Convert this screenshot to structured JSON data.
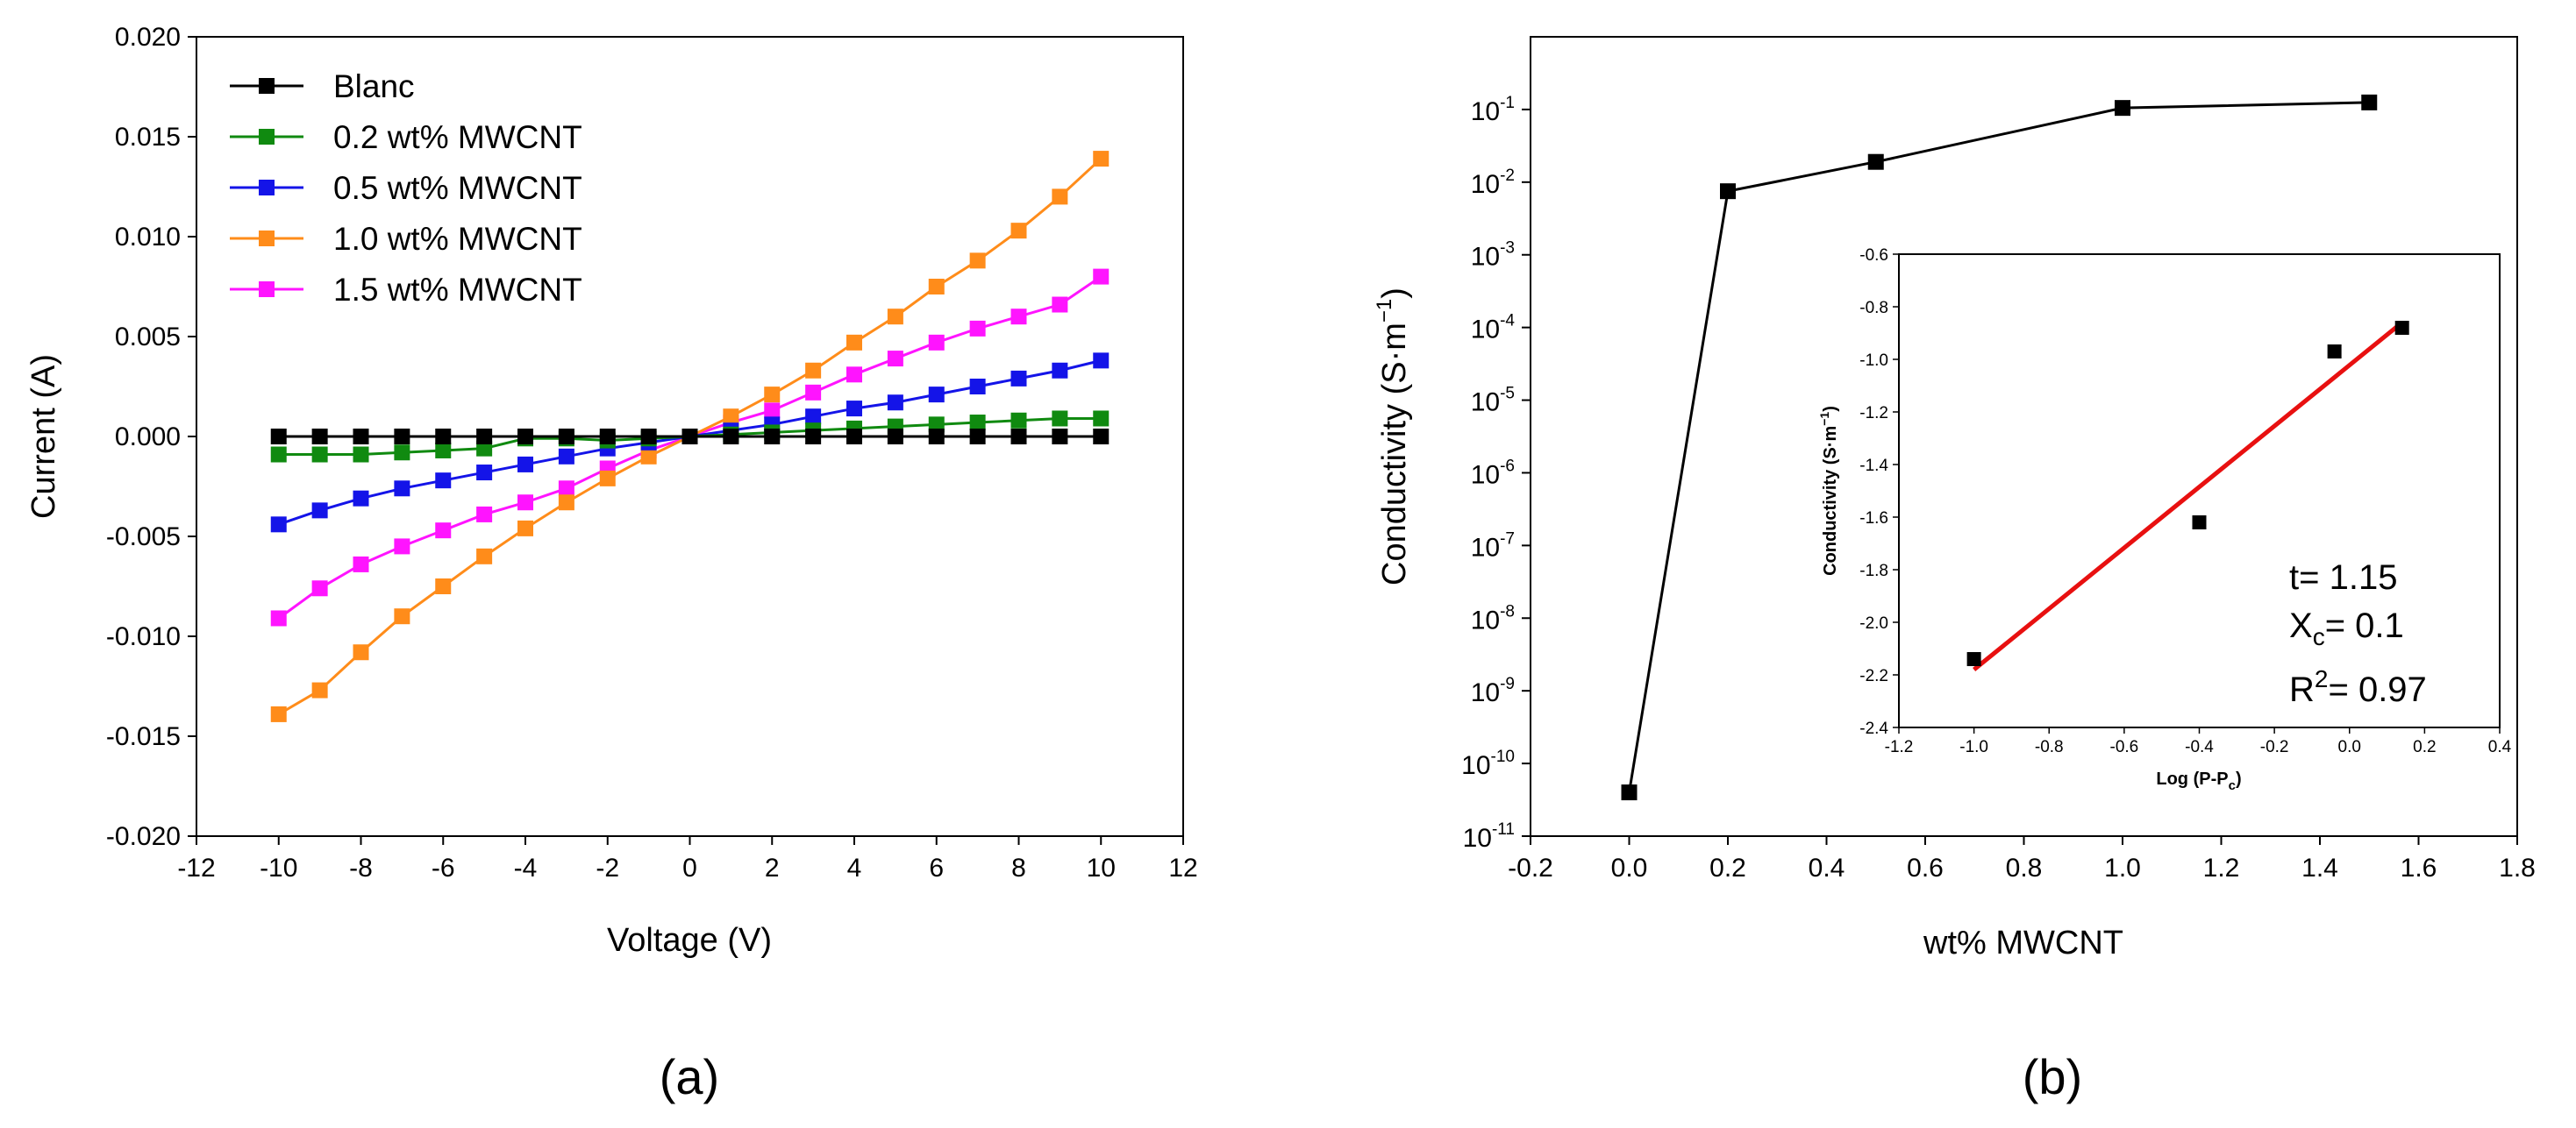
{
  "chart_data": [
    {
      "panel_label": "(a)",
      "type": "line",
      "xlabel": "Voltage (V)",
      "ylabel": "Current (A)",
      "xlim": [
        -12,
        12
      ],
      "ylim": [
        -0.02,
        0.02
      ],
      "x_ticks": [
        "-12",
        "-10",
        "-8",
        "-6",
        "-4",
        "-2",
        "0",
        "2",
        "4",
        "6",
        "8",
        "10",
        "12"
      ],
      "y_ticks": [
        "0.020",
        "0.015",
        "0.010",
        "0.005",
        "0.000",
        "-0.005",
        "-0.010",
        "-0.015",
        "-0.020"
      ],
      "legend_position": "top-left",
      "x": [
        -10,
        -9,
        -8,
        -7,
        -6,
        -5,
        -4,
        -3,
        -2,
        -1,
        0,
        1,
        2,
        3,
        4,
        5,
        6,
        7,
        8,
        9,
        10
      ],
      "series": [
        {
          "name": "Blanc",
          "color": "#000000",
          "values": [
            0,
            0,
            0,
            0,
            0,
            0,
            0,
            0,
            0,
            0,
            0,
            0,
            0,
            0,
            0,
            0,
            0,
            0,
            0,
            0,
            0
          ]
        },
        {
          "name": "0.2 wt% MWCNT",
          "color": "#108a10",
          "values": [
            -0.0009,
            -0.0009,
            -0.0009,
            -0.0008,
            -0.0007,
            -0.0006,
            -0.0001,
            -0.0001,
            -0.0002,
            -0.0001,
            0,
            0.0001,
            0.0002,
            0.0003,
            0.0004,
            0.0005,
            0.0006,
            0.0007,
            0.0008,
            0.0009,
            0.0009
          ]
        },
        {
          "name": "0.5 wt% MWCNT",
          "color": "#1414e8",
          "values": [
            -0.0044,
            -0.0037,
            -0.0031,
            -0.0026,
            -0.0022,
            -0.0018,
            -0.0014,
            -0.001,
            -0.0006,
            -0.0003,
            0,
            0.0003,
            0.0006,
            0.001,
            0.0014,
            0.0017,
            0.0021,
            0.0025,
            0.0029,
            0.0033,
            0.0038
          ]
        },
        {
          "name": "1.0 wt% MWCNT",
          "color": "#ff8c1a",
          "values": [
            -0.0139,
            -0.0127,
            -0.0108,
            -0.009,
            -0.0075,
            -0.006,
            -0.0046,
            -0.0033,
            -0.0021,
            -0.001,
            0,
            0.001,
            0.0021,
            0.0033,
            0.0047,
            0.006,
            0.0075,
            0.0088,
            0.0103,
            0.012,
            0.0139
          ]
        },
        {
          "name": "1.5 wt% MWCNT",
          "color": "#ff14ff",
          "values": [
            -0.0091,
            -0.0076,
            -0.0064,
            -0.0055,
            -0.0047,
            -0.0039,
            -0.0033,
            -0.0026,
            -0.0016,
            -0.0007,
            0,
            0.0007,
            0.0013,
            0.0022,
            0.0031,
            0.0039,
            0.0047,
            0.0054,
            0.006,
            0.0066,
            0.008
          ]
        }
      ]
    },
    {
      "panel_label": "(b)",
      "type": "line",
      "xlabel": "wt% MWCNT",
      "ylabel": "Conductivity (S·m",
      "ylabel_sup": "−1",
      "ylabel_close": ")",
      "y_scale": "log",
      "xlim": [
        -0.2,
        1.8
      ],
      "ylim": [
        1e-11,
        1
      ],
      "x_ticks": [
        "-0.2",
        "0.0",
        "0.2",
        "0.4",
        "0.6",
        "0.8",
        "1.0",
        "1.2",
        "1.4",
        "1.6",
        "1.8"
      ],
      "y_ticks": [
        {
          "base": "10",
          "exp": "-1"
        },
        {
          "base": "10",
          "exp": "-2"
        },
        {
          "base": "10",
          "exp": "-3"
        },
        {
          "base": "10",
          "exp": "-4"
        },
        {
          "base": "10",
          "exp": "-5"
        },
        {
          "base": "10",
          "exp": "-6"
        },
        {
          "base": "10",
          "exp": "-7"
        },
        {
          "base": "10",
          "exp": "-8"
        },
        {
          "base": "10",
          "exp": "-9"
        },
        {
          "base": "10",
          "exp": "-10"
        },
        {
          "base": "10",
          "exp": "-11"
        }
      ],
      "x": [
        0.0,
        0.2,
        0.5,
        1.0,
        1.5
      ],
      "series": [
        {
          "color": "#000000",
          "values": [
            4e-11,
            0.0075,
            0.019,
            0.105,
            0.125
          ]
        }
      ],
      "inset": {
        "type": "scatter",
        "xlabel": "Log (P-P",
        "xlabel_sub": "c",
        "xlabel_close": ")",
        "ylabel": "Conductivity (S·m",
        "ylabel_sup": "−1",
        "ylabel_close": ")",
        "xlim": [
          -1.2,
          0.4
        ],
        "ylim": [
          -2.4,
          -0.6
        ],
        "x_ticks": [
          "-1.2",
          "-1.0",
          "-0.8",
          "-0.6",
          "-0.4",
          "-0.2",
          "0.0",
          "0.2",
          "0.4"
        ],
        "y_ticks": [
          "-0.6",
          "-0.8",
          "-1.0",
          "-1.2",
          "-1.4",
          "-1.6",
          "-1.8",
          "-2.0",
          "-2.2",
          "-2.4"
        ],
        "points": {
          "x": [
            -1.0,
            -0.4,
            -0.04,
            0.14
          ],
          "y": [
            -2.14,
            -1.62,
            -0.97,
            -0.88
          ]
        },
        "fit_line": {
          "color": "#e81010",
          "x": [
            -1.0,
            0.14
          ],
          "y": [
            -2.18,
            -0.86
          ]
        },
        "annotations": {
          "t_text": "t= 1.15",
          "xc_text": "X",
          "xc_sub": "c",
          "xc_value": "= 0.1",
          "r2_text": "R",
          "r2_sup": "2",
          "r2_value": "= 0.97"
        }
      }
    }
  ]
}
